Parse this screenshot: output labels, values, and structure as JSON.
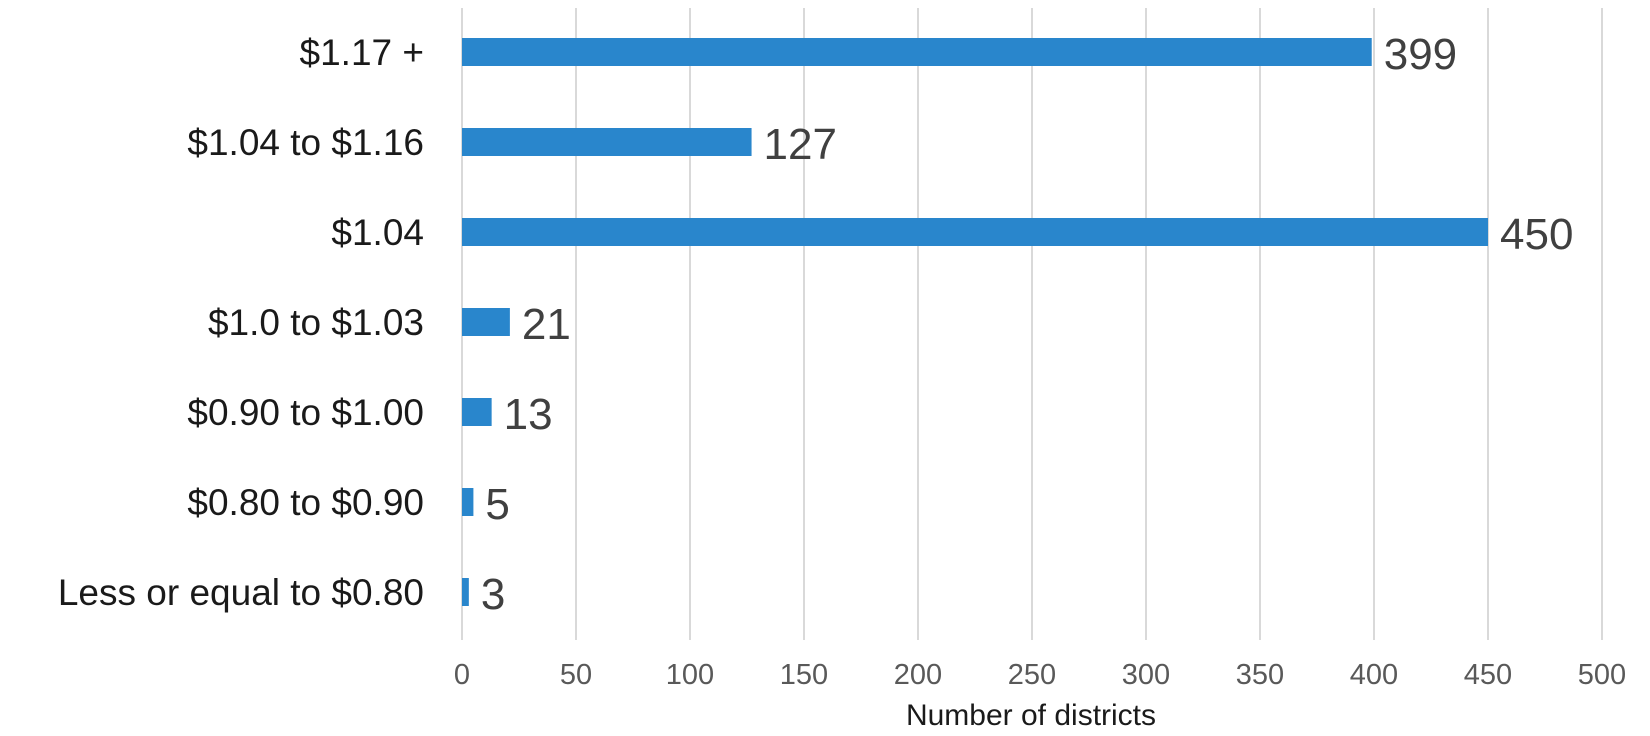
{
  "chart_data": {
    "type": "bar",
    "orientation": "horizontal",
    "categories": [
      "$1.17 +",
      "$1.04 to $1.16",
      "$1.04",
      "$1.0 to $1.03",
      "$0.90 to $1.00",
      "$0.80 to $0.90",
      "Less or equal to $0.80"
    ],
    "values": [
      399,
      127,
      450,
      21,
      13,
      5,
      3
    ],
    "xlabel": "Number of districts",
    "ylabel": "",
    "xlim": [
      0,
      500
    ],
    "x_ticks": [
      0,
      50,
      100,
      150,
      200,
      250,
      300,
      350,
      400,
      450,
      500
    ],
    "grid": "vertical",
    "legend": "none",
    "bar_color": "#2986cc",
    "data_labels": true
  }
}
